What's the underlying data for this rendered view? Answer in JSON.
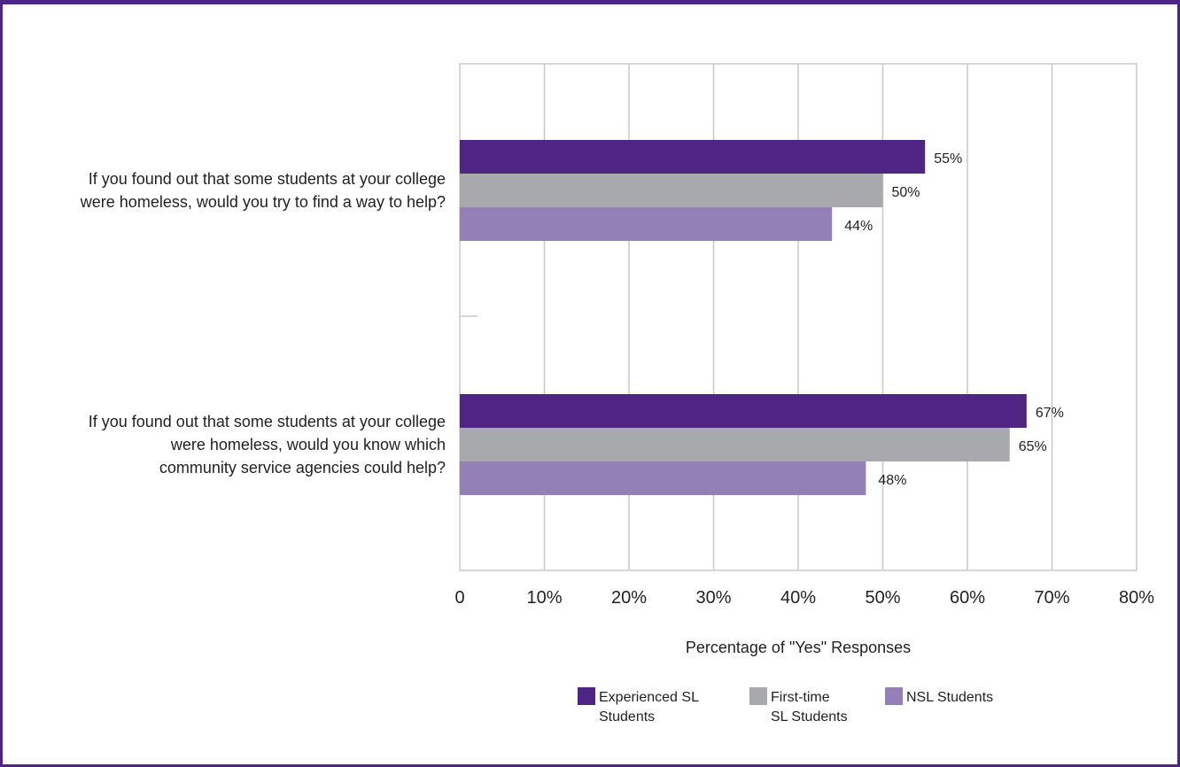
{
  "chart_data": {
    "type": "bar",
    "orientation": "horizontal",
    "categories": [
      [
        "If you found out that some students at your college",
        "were homeless, would you try to find a way to help?"
      ],
      [
        "If you found out that some students at your college",
        "were homeless, would you know which",
        "community service agencies could help?"
      ]
    ],
    "series": [
      {
        "name": [
          "Experienced SL",
          "Students"
        ],
        "color": "#4e2582",
        "values": [
          55,
          67
        ],
        "labels": [
          "55%",
          "67%"
        ]
      },
      {
        "name": [
          "First-time",
          "SL Students"
        ],
        "color": "#a7a9ac",
        "values": [
          50,
          65
        ],
        "labels": [
          "50%",
          "65%"
        ]
      },
      {
        "name": [
          "NSL Students"
        ],
        "color": "#9280b6",
        "values": [
          44,
          48
        ],
        "labels": [
          "44%",
          "48%"
        ]
      }
    ],
    "xlim": [
      0,
      80
    ],
    "x_ticks": [
      0,
      10,
      20,
      30,
      40,
      50,
      60,
      70,
      80
    ],
    "x_tick_labels": [
      "0",
      "10%",
      "20%",
      "30%",
      "40%",
      "50%",
      "60%",
      "70%",
      "80%"
    ],
    "xlabel": "Percentage of \"Yes\" Responses",
    "grid": true,
    "legend_position": "bottom"
  }
}
